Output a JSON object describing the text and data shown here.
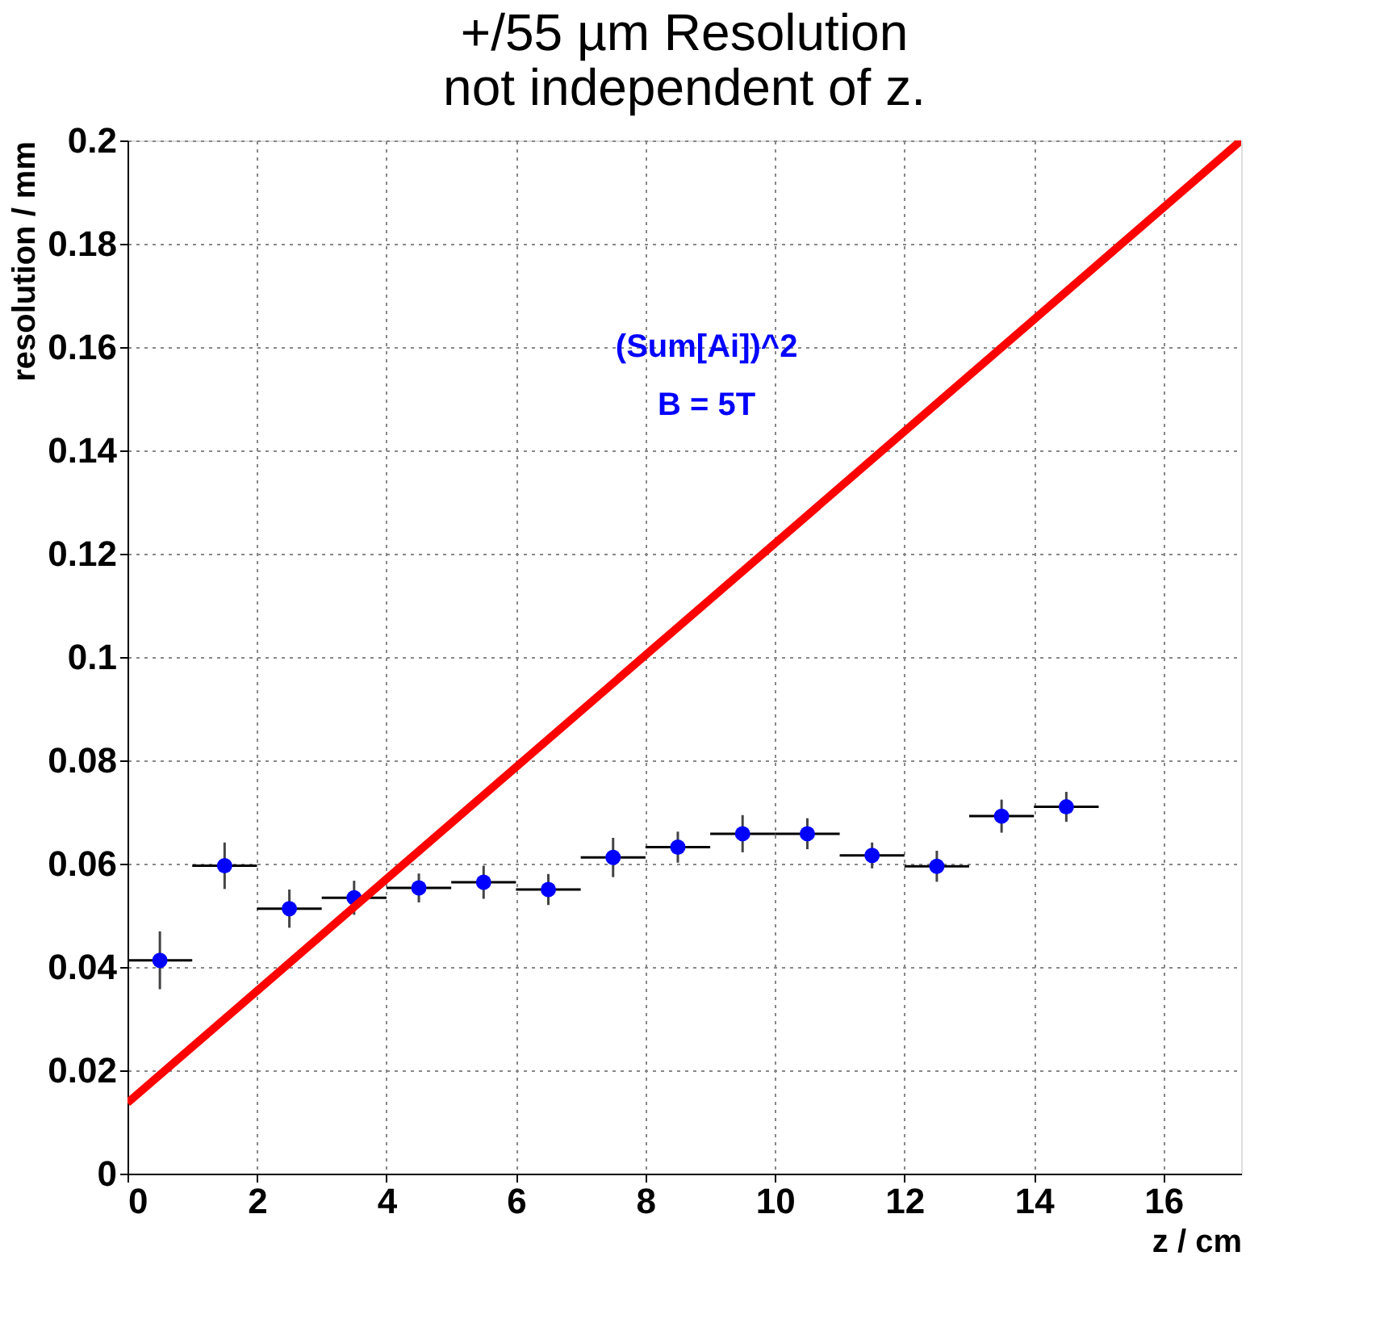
{
  "chart_data": {
    "type": "scatter",
    "title": "+/55 µm Resolution\nnot independent of z.",
    "xlabel": "z / cm",
    "ylabel": "resolution / mm",
    "annotations": [
      "(Sum[Ai])^2",
      "B = 5T"
    ],
    "xlim": [
      0,
      17.2
    ],
    "xticks": [
      0,
      2,
      4,
      6,
      8,
      10,
      12,
      14,
      16
    ],
    "ylim": [
      0,
      0.2
    ],
    "yticks": [
      0,
      0.02,
      0.04,
      0.06,
      0.08,
      0.1,
      0.12,
      0.14,
      0.16,
      0.18,
      0.2
    ],
    "grid": true,
    "series": [
      {
        "color": "#0000ff",
        "marker": "circle",
        "x": [
          0.5,
          1.5,
          2.5,
          3.5,
          4.5,
          5.5,
          6.5,
          7.5,
          8.5,
          9.5,
          10.5,
          11.5,
          12.5,
          13.5,
          14.5
        ],
        "values": [
          0.0413,
          0.0596,
          0.0513,
          0.0534,
          0.0553,
          0.0564,
          0.055,
          0.0612,
          0.0632,
          0.0658,
          0.0658,
          0.0616,
          0.0595,
          0.0692,
          0.071
        ],
        "errors": [
          0.0056,
          0.0045,
          0.0037,
          0.0033,
          0.0028,
          0.0032,
          0.003,
          0.0038,
          0.003,
          0.0036,
          0.003,
          0.0025,
          0.003,
          0.0032,
          0.0029
        ],
        "xerrors": [
          0.5,
          0.5,
          0.5,
          0.5,
          0.5,
          0.5,
          0.5,
          0.5,
          0.5,
          0.5,
          0.5,
          0.5,
          0.5,
          0.5,
          0.5
        ]
      },
      {
        "type": "line",
        "color": "#ff0000",
        "line_style": "solid",
        "x": [
          0,
          17.2
        ],
        "values": [
          0.0137,
          0.2
        ]
      }
    ]
  }
}
